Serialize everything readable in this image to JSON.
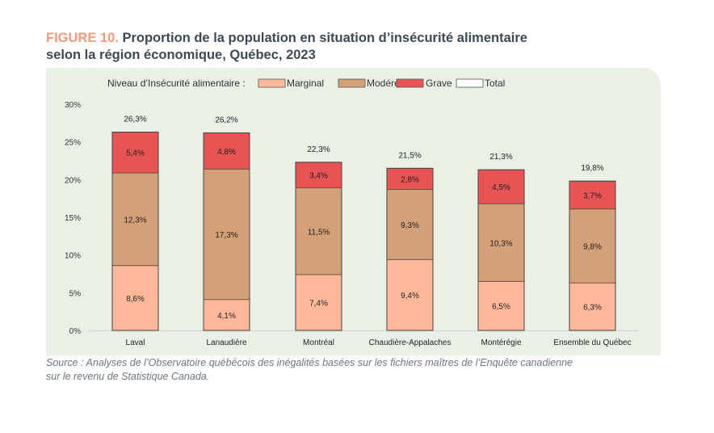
{
  "figure_label": "FIGURE 10.",
  "title_line1": "Proportion de la population en situation d’insécurité alimentaire",
  "title_line2": "selon la région économique, Québec, 2023",
  "source_line1": "Source : Analyses de l’Observatoire québécois des inégalités basées sur les fichiers maîtres de l’Enquête canadienne",
  "source_line2": "sur le revenu de Statistique Canada.",
  "chart_data": {
    "type": "bar",
    "stacked": true,
    "title": "Proportion de la population en situation d’insécurité alimentaire selon la région économique, Québec, 2023",
    "legend_title": "Niveau d’Insécurité alimentaire :",
    "legend_placement": "top",
    "categories": [
      "Laval",
      "Lanaudière",
      "Montréal",
      "Chaudière-Appalaches",
      "Montérégie",
      "Ensemble du Québec"
    ],
    "series": [
      {
        "name": "Marginal",
        "color": "#ffb99a",
        "values": [
          8.6,
          4.1,
          7.4,
          9.4,
          6.5,
          6.3
        ],
        "labels": [
          "8,6%",
          "4,1%",
          "7,4%",
          "9,4%",
          "6,5%",
          "6,3%"
        ]
      },
      {
        "name": "Modéré",
        "color": "#d4a077",
        "values": [
          12.3,
          17.3,
          11.5,
          9.3,
          10.3,
          9.8
        ],
        "labels": [
          "12,3%",
          "17,3%",
          "11,5%",
          "9,3%",
          "10,3%",
          "9,8%"
        ]
      },
      {
        "name": "Grave",
        "color": "#e85353",
        "values": [
          5.4,
          4.8,
          3.4,
          2.8,
          4.5,
          3.7
        ],
        "labels": [
          "5,4%",
          "4,8%",
          "3,4%",
          "2,8%",
          "4,5%",
          "3,7%"
        ]
      },
      {
        "name": "Total",
        "color": "#ffffff",
        "values": [
          26.3,
          26.2,
          22.3,
          21.5,
          21.3,
          19.8
        ],
        "labels": [
          "26,3%",
          "26,2%",
          "22,3%",
          "21,5%",
          "21,3%",
          "19,8%"
        ]
      }
    ],
    "y_ticks": [
      0,
      5,
      10,
      15,
      20,
      25,
      30
    ],
    "y_tick_labels": [
      "0%",
      "5%",
      "10%",
      "15%",
      "20%",
      "25%",
      "30%"
    ],
    "xlabel": "",
    "ylabel": "",
    "ylim": [
      0,
      30
    ],
    "grid": false
  }
}
